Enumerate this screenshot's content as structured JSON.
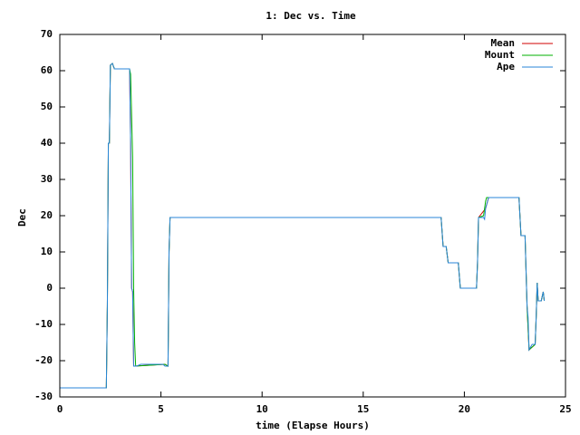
{
  "chart_data": {
    "type": "line",
    "title": "1: Dec vs. Time",
    "xlabel": "time (Elapse Hours)",
    "ylabel": "Dec",
    "xlim": [
      0,
      25
    ],
    "xticks": [
      0,
      5,
      10,
      15,
      20,
      25
    ],
    "ylim": [
      -30,
      70
    ],
    "yticks": [
      -30,
      -20,
      -10,
      0,
      10,
      20,
      30,
      40,
      50,
      60,
      70
    ],
    "legend": "top-right",
    "series": [
      {
        "name": "Mean",
        "color": "#d00000",
        "x": [
          0,
          2.3,
          2.35,
          2.4,
          2.45,
          2.5,
          2.6,
          2.7,
          3.45,
          3.5,
          3.55,
          3.6,
          3.65,
          5.2,
          5.35,
          5.4,
          5.45,
          18.85,
          18.95,
          19.1,
          19.2,
          19.7,
          19.8,
          20.6,
          20.65,
          20.7,
          21.05,
          21.2,
          22.7,
          22.8,
          23,
          23.1,
          23.2,
          23.5,
          23.55,
          23.6,
          23.65,
          23.8,
          23.9,
          23.95
        ],
        "values": [
          -27.5,
          -27.5,
          -5,
          40,
          40,
          61.5,
          62,
          60.5,
          60.5,
          40,
          0,
          -1,
          -21.5,
          -21,
          -21.5,
          10,
          19.5,
          19.5,
          11.5,
          11.5,
          7,
          7,
          0,
          0,
          7,
          19.5,
          22,
          25,
          25,
          14.5,
          14.5,
          -5,
          -17,
          -15.5,
          -8,
          1.5,
          -3.5,
          -3.5,
          -1,
          -3.5
        ]
      },
      {
        "name": "Mount",
        "color": "#00b000",
        "x": [
          0,
          2.3,
          2.35,
          2.4,
          2.45,
          2.5,
          2.6,
          2.7,
          3.45,
          3.5,
          3.6,
          3.65,
          3.7,
          3.75,
          5.2,
          5.35,
          5.4,
          5.45,
          18.85,
          18.95,
          19.1,
          19.2,
          19.7,
          19.8,
          20.6,
          20.65,
          20.7,
          20.95,
          21.05,
          21.1,
          22.7,
          22.8,
          23,
          23.1,
          23.2,
          23.5,
          23.55,
          23.6,
          23.65,
          23.8,
          23.9,
          23.95
        ],
        "values": [
          -27.5,
          -27.5,
          -5,
          40,
          40,
          61.5,
          62,
          60.5,
          60.5,
          59,
          36,
          0,
          -15,
          -21.5,
          -21,
          -21.5,
          10,
          19.5,
          19.5,
          11.5,
          11.5,
          7,
          7,
          0,
          0,
          7,
          19.5,
          20,
          24,
          25,
          25,
          14.5,
          14.5,
          -5,
          -17,
          -15.5,
          -8,
          1.5,
          -3.5,
          -3.5,
          -1,
          -3.5
        ]
      },
      {
        "name": "Ape",
        "color": "#2a86d8",
        "x": [
          0,
          2.3,
          2.35,
          2.4,
          2.45,
          2.5,
          2.6,
          2.7,
          3.45,
          3.5,
          3.55,
          3.6,
          3.65,
          3.8,
          4,
          5.1,
          5.2,
          5.35,
          5.4,
          5.45,
          18.85,
          18.95,
          19.1,
          19.2,
          19.7,
          19.8,
          20.6,
          20.65,
          20.7,
          20.95,
          21,
          21.05,
          21.2,
          22.7,
          22.8,
          23,
          23.1,
          23.15,
          23.2,
          23.3,
          23.35,
          23.5,
          23.55,
          23.6,
          23.65,
          23.8,
          23.9,
          23.95
        ],
        "values": [
          -27.5,
          -27.5,
          -5,
          40,
          40,
          61.5,
          62,
          60.5,
          60.5,
          40,
          0,
          -1,
          -21.5,
          -21.5,
          -21,
          -21,
          -21.5,
          -21.5,
          10,
          19.5,
          19.5,
          11.5,
          11.5,
          7,
          7,
          0,
          0,
          7,
          19.5,
          19.5,
          19,
          22,
          25,
          25,
          14.5,
          14.5,
          -5,
          -8,
          -17,
          -16,
          -15.5,
          -15.5,
          -8,
          1.5,
          -3.5,
          -3.5,
          -1,
          -3.5
        ]
      }
    ]
  }
}
